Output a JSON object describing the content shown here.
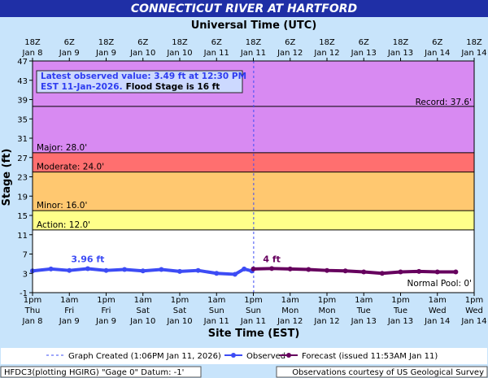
{
  "chart_data": {
    "type": "line",
    "title": "CONNECTICUT RIVER AT HARTFORD",
    "top_axis_label": "Universal Time (UTC)",
    "x_label": "Site Time (EST)",
    "y_label": "Stage (ft)",
    "xlim": [
      0,
      144
    ],
    "ylim": [
      -1,
      47
    ],
    "yticks": [
      -1,
      3,
      7,
      11,
      15,
      19,
      23,
      27,
      31,
      35,
      39,
      43,
      47
    ],
    "xticks": [
      {
        "value": 0,
        "label": [
          "1pm",
          "Thu",
          "Jan 8"
        ]
      },
      {
        "value": 12,
        "label": [
          "1am",
          "Fri",
          "Jan 9"
        ]
      },
      {
        "value": 24,
        "label": [
          "1pm",
          "Fri",
          "Jan 9"
        ]
      },
      {
        "value": 36,
        "label": [
          "1am",
          "Sat",
          "Jan 10"
        ]
      },
      {
        "value": 48,
        "label": [
          "1pm",
          "Sat",
          "Jan 10"
        ]
      },
      {
        "value": 60,
        "label": [
          "1am",
          "Sun",
          "Jan 11"
        ]
      },
      {
        "value": 72,
        "label": [
          "1pm",
          "Sun",
          "Jan 11"
        ]
      },
      {
        "value": 84,
        "label": [
          "1am",
          "Mon",
          "Jan 12"
        ]
      },
      {
        "value": 96,
        "label": [
          "1pm",
          "Mon",
          "Jan 12"
        ]
      },
      {
        "value": 108,
        "label": [
          "1am",
          "Tue",
          "Jan 13"
        ]
      },
      {
        "value": 120,
        "label": [
          "1pm",
          "Tue",
          "Jan 13"
        ]
      },
      {
        "value": 132,
        "label": [
          "1am",
          "Wed",
          "Jan 14"
        ]
      },
      {
        "value": 144,
        "label": [
          "1pm",
          "Wed",
          "Jan 14"
        ]
      }
    ],
    "x2ticks": [
      {
        "value": 0,
        "label": [
          "18Z",
          "Jan 8"
        ]
      },
      {
        "value": 12,
        "label": [
          "6Z",
          "Jan 9"
        ]
      },
      {
        "value": 24,
        "label": [
          "18Z",
          "Jan 9"
        ]
      },
      {
        "value": 36,
        "label": [
          "6Z",
          "Jan 10"
        ]
      },
      {
        "value": 48,
        "label": [
          "18Z",
          "Jan 10"
        ]
      },
      {
        "value": 60,
        "label": [
          "6Z",
          "Jan 11"
        ]
      },
      {
        "value": 72,
        "label": [
          "18Z",
          "Jan 11"
        ]
      },
      {
        "value": 84,
        "label": [
          "6Z",
          "Jan 12"
        ]
      },
      {
        "value": 96,
        "label": [
          "18Z",
          "Jan 12"
        ]
      },
      {
        "value": 108,
        "label": [
          "6Z",
          "Jan 13"
        ]
      },
      {
        "value": 120,
        "label": [
          "18Z",
          "Jan 13"
        ]
      },
      {
        "value": 132,
        "label": [
          "6Z",
          "Jan 14"
        ]
      },
      {
        "value": 144,
        "label": [
          "18Z",
          "Jan 14"
        ]
      }
    ],
    "bands": [
      {
        "label": "Action: 12.0'",
        "from": 12,
        "to": 16,
        "color": "#ffff8a"
      },
      {
        "label": "Minor: 16.0'",
        "from": 16,
        "to": 24,
        "color": "#ffc870"
      },
      {
        "label": "Moderate: 24.0'",
        "from": 24,
        "to": 28,
        "color": "#ff6f6f"
      },
      {
        "label": "Major: 28.0'",
        "from": 28,
        "to": 47,
        "color": "#d88af2"
      }
    ],
    "record": {
      "label": "Record: 37.6'",
      "value": 37.6
    },
    "normal_pool": {
      "label": "Normal Pool: 0'",
      "value": 0
    },
    "created_x": 72.1,
    "created_label": "Graph Created (1:06PM Jan 11, 2026)",
    "info": {
      "line1": "Latest observed value: 3.49 ft at 12:30 PM",
      "line2": "EST 11-Jan-2026.",
      "line3": "Flood Stage is 16 ft"
    },
    "series": [
      {
        "name": "Observed",
        "color": "#3d4cf5",
        "x": [
          0,
          6,
          12,
          18,
          24,
          30,
          36,
          42,
          48,
          54,
          60,
          66,
          69,
          71.5
        ],
        "values": [
          3.5,
          3.9,
          3.6,
          3.96,
          3.6,
          3.8,
          3.5,
          3.8,
          3.4,
          3.6,
          3.0,
          2.8,
          3.9,
          3.49
        ],
        "value_labels": [
          null,
          null,
          null,
          "3.96 ft",
          null,
          null,
          null,
          null,
          null,
          null,
          null,
          null,
          null,
          null
        ]
      },
      {
        "name": "Forecast (issued 11:53AM Jan 11)",
        "color": "#66005e",
        "x": [
          72,
          78,
          84,
          90,
          96,
          102,
          108,
          114,
          120,
          126,
          132,
          138
        ],
        "values": [
          3.9,
          4,
          3.9,
          3.8,
          3.6,
          3.5,
          3.3,
          3.0,
          3.3,
          3.4,
          3.3,
          3.3
        ],
        "value_labels": [
          null,
          "4 ft",
          null,
          null,
          null,
          null,
          null,
          null,
          null,
          null,
          null,
          null
        ]
      }
    ],
    "footer_left": "HFDC3(plotting HGIRG) \"Gage 0\" Datum: -1'",
    "footer_right": "Observations courtesy of US Geological Survey"
  }
}
